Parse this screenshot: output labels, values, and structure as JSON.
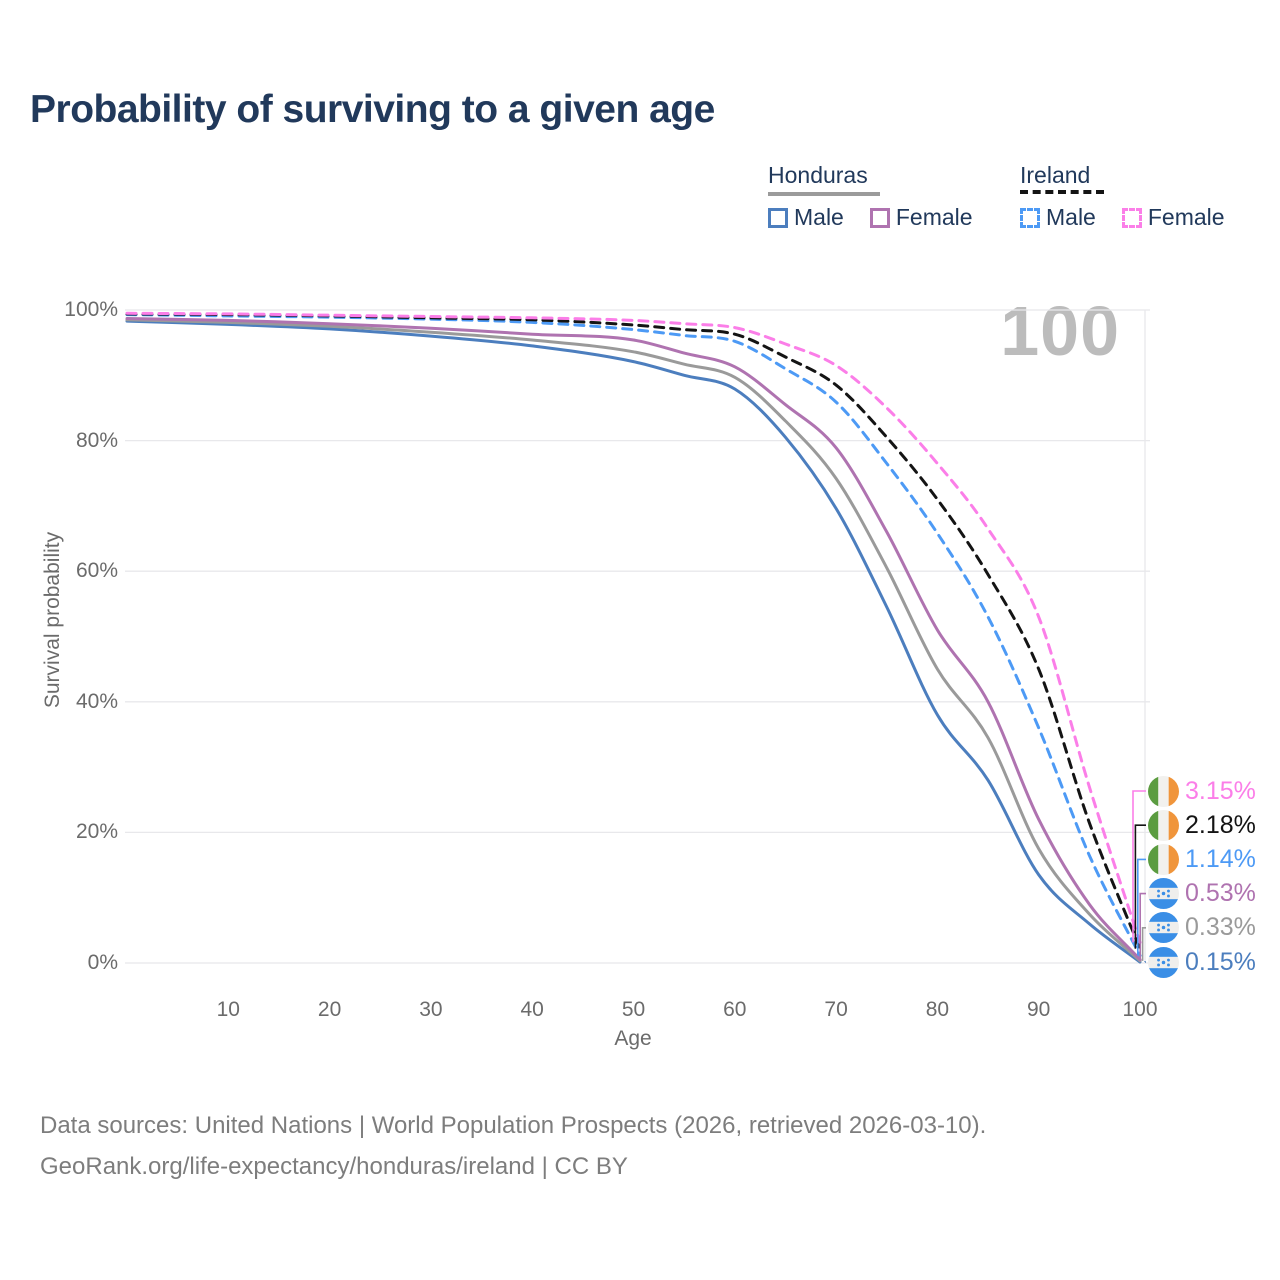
{
  "title": "Probability of surviving to a given age",
  "watermark": "100",
  "legend": {
    "groups": [
      {
        "label": "Honduras",
        "underline_style": "solid",
        "underline_color": "#9b9b9b",
        "items": [
          {
            "label": "Male",
            "color": "#4C7EBE",
            "dash": "solid"
          },
          {
            "label": "Female",
            "color": "#AF73B0",
            "dash": "solid"
          }
        ]
      },
      {
        "label": "Ireland",
        "underline_style": "dashed",
        "underline_color": "#141414",
        "items": [
          {
            "label": "Male",
            "color": "#4D9AF5",
            "dash": "dashed"
          },
          {
            "label": "Female",
            "color": "#FB7EE8",
            "dash": "dashed"
          }
        ]
      }
    ]
  },
  "axes": {
    "x_label": "Age",
    "y_label": "Survival probability",
    "x_ticks": [
      "10",
      "20",
      "30",
      "40",
      "50",
      "60",
      "70",
      "80",
      "90",
      "100"
    ],
    "y_ticks": [
      "0%",
      "20%",
      "40%",
      "60%",
      "80%",
      "100%"
    ]
  },
  "end_labels": [
    {
      "value": "3.15%",
      "color": "#FB7EE8",
      "flag": "ireland"
    },
    {
      "value": "2.18%",
      "color": "#141414",
      "flag": "ireland"
    },
    {
      "value": "1.14%",
      "color": "#4D9AF5",
      "flag": "ireland"
    },
    {
      "value": "0.53%",
      "color": "#AF73B0",
      "flag": "honduras"
    },
    {
      "value": "0.33%",
      "color": "#9A9A9A",
      "flag": "honduras"
    },
    {
      "value": "0.15%",
      "color": "#4C7EBE",
      "flag": "honduras"
    }
  ],
  "footer": {
    "line1": "Data sources: United Nations | World Population Prospects (2026, retrieved 2026-03-10).",
    "line2": "GeoRank.org/life-expectancy/honduras/ireland | CC BY"
  },
  "chart_data": {
    "type": "line",
    "title": "Probability of surviving to a given age",
    "xlabel": "Age",
    "ylabel": "Survival probability",
    "xlim": [
      0,
      100
    ],
    "ylim": [
      0,
      100
    ],
    "grid": "horizontal",
    "legend_position": "top-right",
    "x": [
      0,
      10,
      20,
      30,
      40,
      50,
      55,
      60,
      65,
      70,
      75,
      80,
      85,
      90,
      95,
      100
    ],
    "series": [
      {
        "name": "Honduras Male",
        "country": "Honduras",
        "sex": "Male",
        "style": "solid",
        "color": "#4C7EBE",
        "end_label": "0.15%",
        "values": [
          98.3,
          97.8,
          97.1,
          96.0,
          94.5,
          92.1,
          90.0,
          87.9,
          80.5,
          69.6,
          54.5,
          38.0,
          28.0,
          13.5,
          6.0,
          0.15
        ]
      },
      {
        "name": "Honduras Both sexes",
        "country": "Honduras",
        "sex": "Both",
        "style": "solid",
        "color": "#9A9A9A",
        "end_label": "0.33%",
        "values": [
          98.5,
          98.1,
          97.5,
          96.6,
          95.4,
          93.6,
          91.7,
          89.7,
          83.0,
          74.2,
          60.5,
          45.0,
          34.5,
          17.5,
          7.5,
          0.33
        ]
      },
      {
        "name": "Honduras Female",
        "country": "Honduras",
        "sex": "Female",
        "style": "solid",
        "color": "#AF73B0",
        "end_label": "0.53%",
        "values": [
          98.7,
          98.4,
          97.9,
          97.2,
          96.3,
          95.4,
          93.4,
          91.3,
          85.5,
          78.9,
          66.0,
          51.0,
          40.0,
          22.0,
          9.0,
          0.53
        ]
      },
      {
        "name": "Ireland Male",
        "country": "Ireland",
        "sex": "Male",
        "style": "dashed",
        "color": "#4D9AF5",
        "end_label": "1.14%",
        "values": [
          99.3,
          99.1,
          98.9,
          98.6,
          98.1,
          97.0,
          96.1,
          95.2,
          91.0,
          85.9,
          76.5,
          65.8,
          53.0,
          36.0,
          16.5,
          1.14
        ]
      },
      {
        "name": "Ireland Both sexes",
        "country": "Ireland",
        "sex": "Both",
        "style": "dashed",
        "color": "#141414",
        "end_label": "2.18%",
        "values": [
          99.4,
          99.3,
          99.1,
          98.8,
          98.5,
          97.7,
          97.0,
          96.3,
          92.8,
          88.5,
          80.5,
          71.0,
          59.5,
          45.0,
          21.5,
          2.18
        ]
      },
      {
        "name": "Ireland Female",
        "country": "Ireland",
        "sex": "Female",
        "style": "dashed",
        "color": "#FB7EE8",
        "end_label": "3.15%",
        "values": [
          99.5,
          99.4,
          99.2,
          99.0,
          98.8,
          98.4,
          97.9,
          97.3,
          94.8,
          91.5,
          85.0,
          76.5,
          66.5,
          53.0,
          27.0,
          3.15
        ]
      }
    ]
  }
}
